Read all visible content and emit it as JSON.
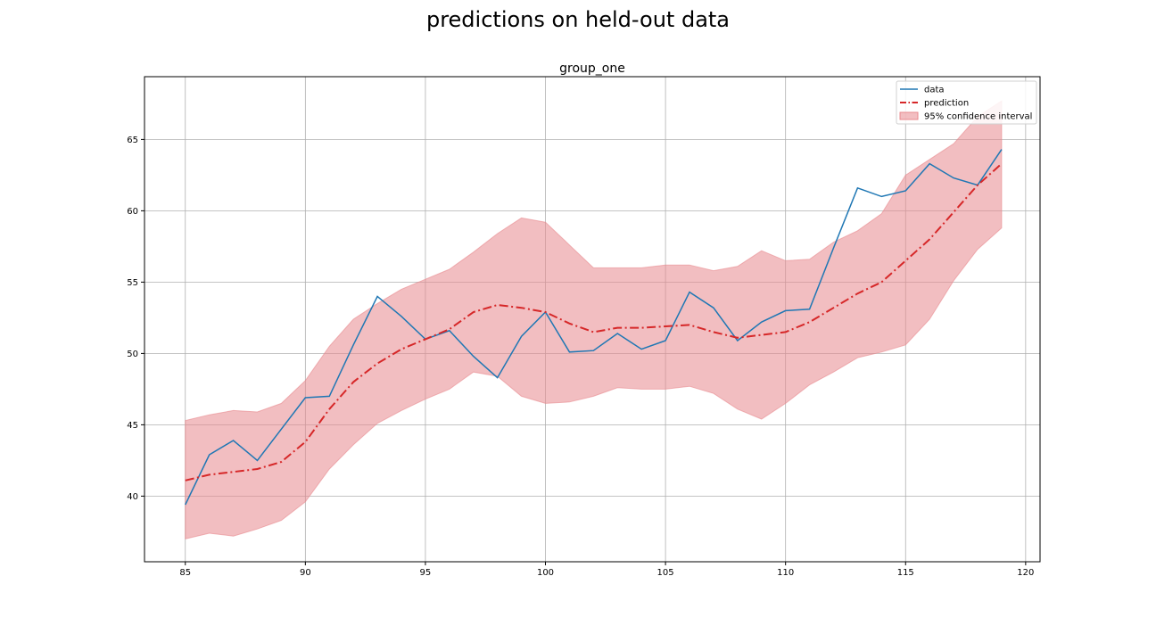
{
  "figure": {
    "title": "predictions on held-out data"
  },
  "chart_data": {
    "type": "line",
    "title": "group_one",
    "xlabel": "",
    "ylabel": "",
    "xlim": [
      83.3,
      120.6
    ],
    "ylim": [
      35.4,
      69.4
    ],
    "xticks": [
      85,
      90,
      95,
      100,
      105,
      110,
      115,
      120
    ],
    "yticks": [
      40,
      45,
      50,
      55,
      60,
      65
    ],
    "grid": true,
    "legend_position": "top-right",
    "x": [
      85,
      86,
      87,
      88,
      89,
      90,
      91,
      92,
      93,
      94,
      95,
      96,
      97,
      98,
      99,
      100,
      101,
      102,
      103,
      104,
      105,
      106,
      107,
      108,
      109,
      110,
      111,
      112,
      113,
      114,
      115,
      116,
      117,
      118,
      119
    ],
    "series": [
      {
        "name": "data",
        "kind": "line",
        "color": "#1f77b4",
        "values": [
          39.4,
          42.9,
          43.9,
          42.5,
          44.7,
          46.9,
          47.0,
          50.6,
          54.0,
          52.6,
          51.0,
          51.6,
          49.8,
          48.3,
          51.2,
          52.9,
          50.1,
          50.2,
          51.4,
          50.3,
          50.9,
          54.3,
          53.2,
          50.9,
          52.2,
          53.0,
          53.1,
          57.4,
          61.6,
          61.0,
          61.4,
          63.3,
          62.3,
          61.8,
          64.3
        ]
      },
      {
        "name": "prediction",
        "kind": "dashdot",
        "color": "#d62728",
        "values": [
          41.1,
          41.5,
          41.7,
          41.9,
          42.4,
          43.8,
          46.1,
          48.0,
          49.3,
          50.3,
          51.0,
          51.7,
          52.9,
          53.4,
          53.2,
          52.9,
          52.1,
          51.5,
          51.8,
          51.8,
          51.9,
          52.0,
          51.5,
          51.1,
          51.3,
          51.5,
          52.2,
          53.2,
          54.2,
          55.0,
          56.5,
          58.0,
          59.9,
          61.8,
          63.3
        ]
      },
      {
        "name": "95% confidence interval",
        "kind": "band",
        "color": "#e8898e",
        "upper": [
          45.3,
          45.7,
          46.0,
          45.9,
          46.5,
          48.1,
          50.5,
          52.4,
          53.5,
          54.5,
          55.2,
          55.9,
          57.1,
          58.4,
          59.5,
          59.2,
          57.6,
          56.0,
          56.0,
          56.0,
          56.2,
          56.2,
          55.8,
          56.1,
          57.2,
          56.5,
          56.6,
          57.8,
          58.6,
          59.8,
          62.5,
          63.6,
          64.7,
          66.6,
          67.7
        ],
        "lower": [
          37.0,
          37.4,
          37.2,
          37.7,
          38.3,
          39.6,
          41.9,
          43.6,
          45.1,
          46.0,
          46.8,
          47.5,
          48.7,
          48.4,
          47.0,
          46.5,
          46.6,
          47.0,
          47.6,
          47.5,
          47.5,
          47.7,
          47.2,
          46.1,
          45.4,
          46.5,
          47.8,
          48.7,
          49.7,
          50.1,
          50.6,
          52.4,
          55.1,
          57.3,
          58.8
        ]
      }
    ]
  }
}
